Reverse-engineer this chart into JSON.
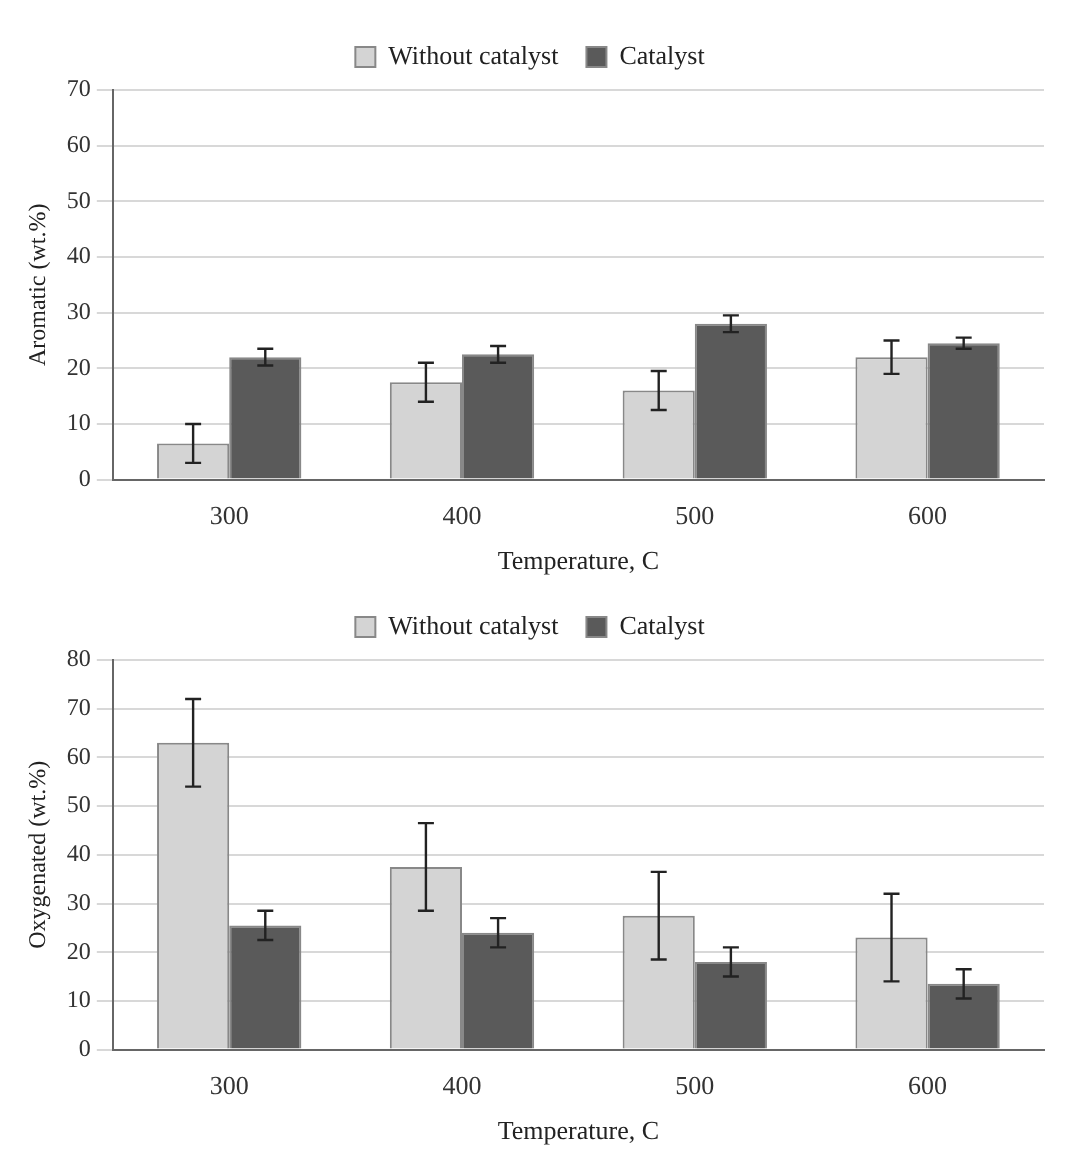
{
  "chart_data": [
    {
      "type": "bar",
      "xlabel": "Temperature, C",
      "ylabel": "Aromatic (wt.%)",
      "categories": [
        "300",
        "400",
        "500",
        "600"
      ],
      "ylim": [
        0,
        70
      ],
      "yticks": [
        0,
        10,
        20,
        30,
        40,
        50,
        60,
        70
      ],
      "grid": "y",
      "legend": "top",
      "series": [
        {
          "name": "Without catalyst",
          "color": "#d4d4d4",
          "values": [
            6.5,
            17.5,
            16,
            22
          ],
          "errors": [
            3.5,
            3.5,
            3.5,
            3
          ]
        },
        {
          "name": "Catalyst",
          "color": "#5a5a5a",
          "values": [
            22,
            22.5,
            28,
            24.5
          ],
          "errors": [
            1.5,
            1.5,
            1.5,
            1
          ]
        }
      ]
    },
    {
      "type": "bar",
      "xlabel": "Temperature, C",
      "ylabel": "Oxygenated (wt.%)",
      "categories": [
        "300",
        "400",
        "500",
        "600"
      ],
      "ylim": [
        0,
        80
      ],
      "yticks": [
        0,
        10,
        20,
        30,
        40,
        50,
        60,
        70,
        80
      ],
      "grid": "y",
      "legend": "top",
      "series": [
        {
          "name": "Without catalyst",
          "color": "#d4d4d4",
          "values": [
            63,
            37.5,
            27.5,
            23
          ],
          "errors": [
            9,
            9,
            9,
            9
          ]
        },
        {
          "name": "Catalyst",
          "color": "#5a5a5a",
          "values": [
            25.5,
            24,
            18,
            13.5
          ],
          "errors": [
            3,
            3,
            3,
            3
          ]
        }
      ]
    }
  ]
}
